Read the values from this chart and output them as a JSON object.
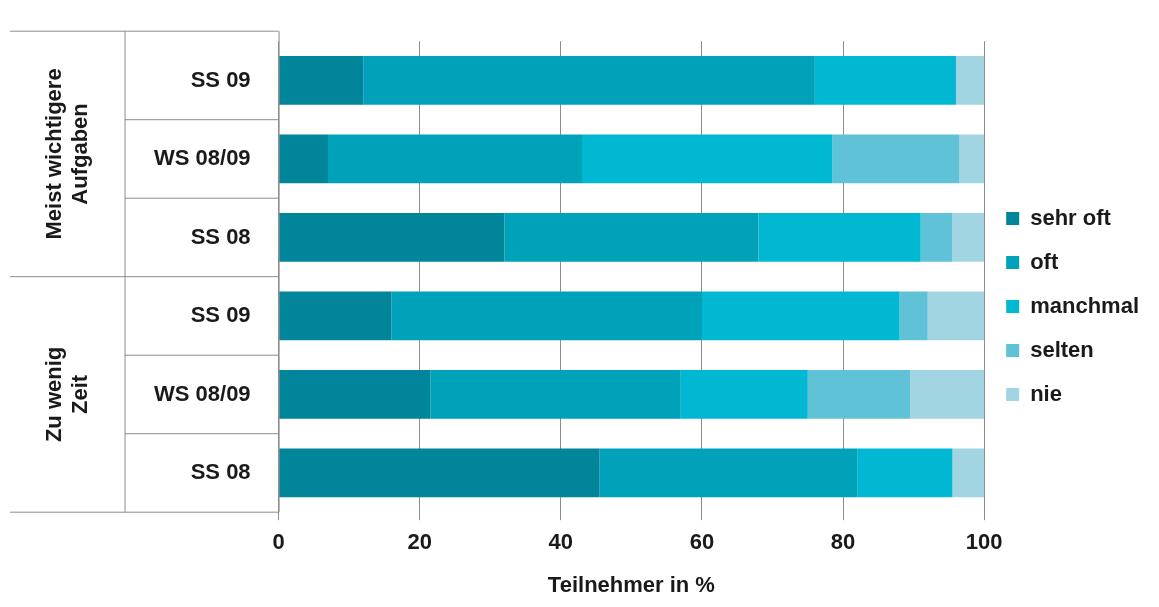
{
  "chart_data": {
    "type": "bar",
    "orientation": "horizontal",
    "stacked": true,
    "categories": [
      "SS 09",
      "WS 08/09",
      "SS 08",
      "SS 09",
      "WS 08/09",
      "SS 08"
    ],
    "series": [
      {
        "name": "sehr oft",
        "color": "#00859a",
        "values": [
          12,
          7,
          32,
          16,
          21.5,
          45.5
        ]
      },
      {
        "name": "oft",
        "color": "#00a2b9",
        "values": [
          64,
          36,
          36,
          44,
          35.5,
          36.5
        ]
      },
      {
        "name": "manchmal",
        "color": "#00b8d2",
        "values": [
          20,
          35.5,
          23,
          28,
          18,
          13.5
        ]
      },
      {
        "name": "selten",
        "color": "#5fc2d6",
        "values": [
          0,
          18,
          4.5,
          4,
          14.5,
          0
        ]
      },
      {
        "name": "nie",
        "color": "#a2d5e2",
        "values": [
          4,
          3.5,
          4.5,
          8,
          10.5,
          4.5
        ]
      }
    ],
    "xlim": [
      0,
      100
    ],
    "xticks": [
      0,
      20,
      40,
      60,
      80,
      100
    ],
    "xlabel": "Teilnehmer in %",
    "grid": "x",
    "legend": "right",
    "annotations": [
      "Meist wichtigere Aufgaben",
      "Zu wenig Zeit"
    ]
  }
}
